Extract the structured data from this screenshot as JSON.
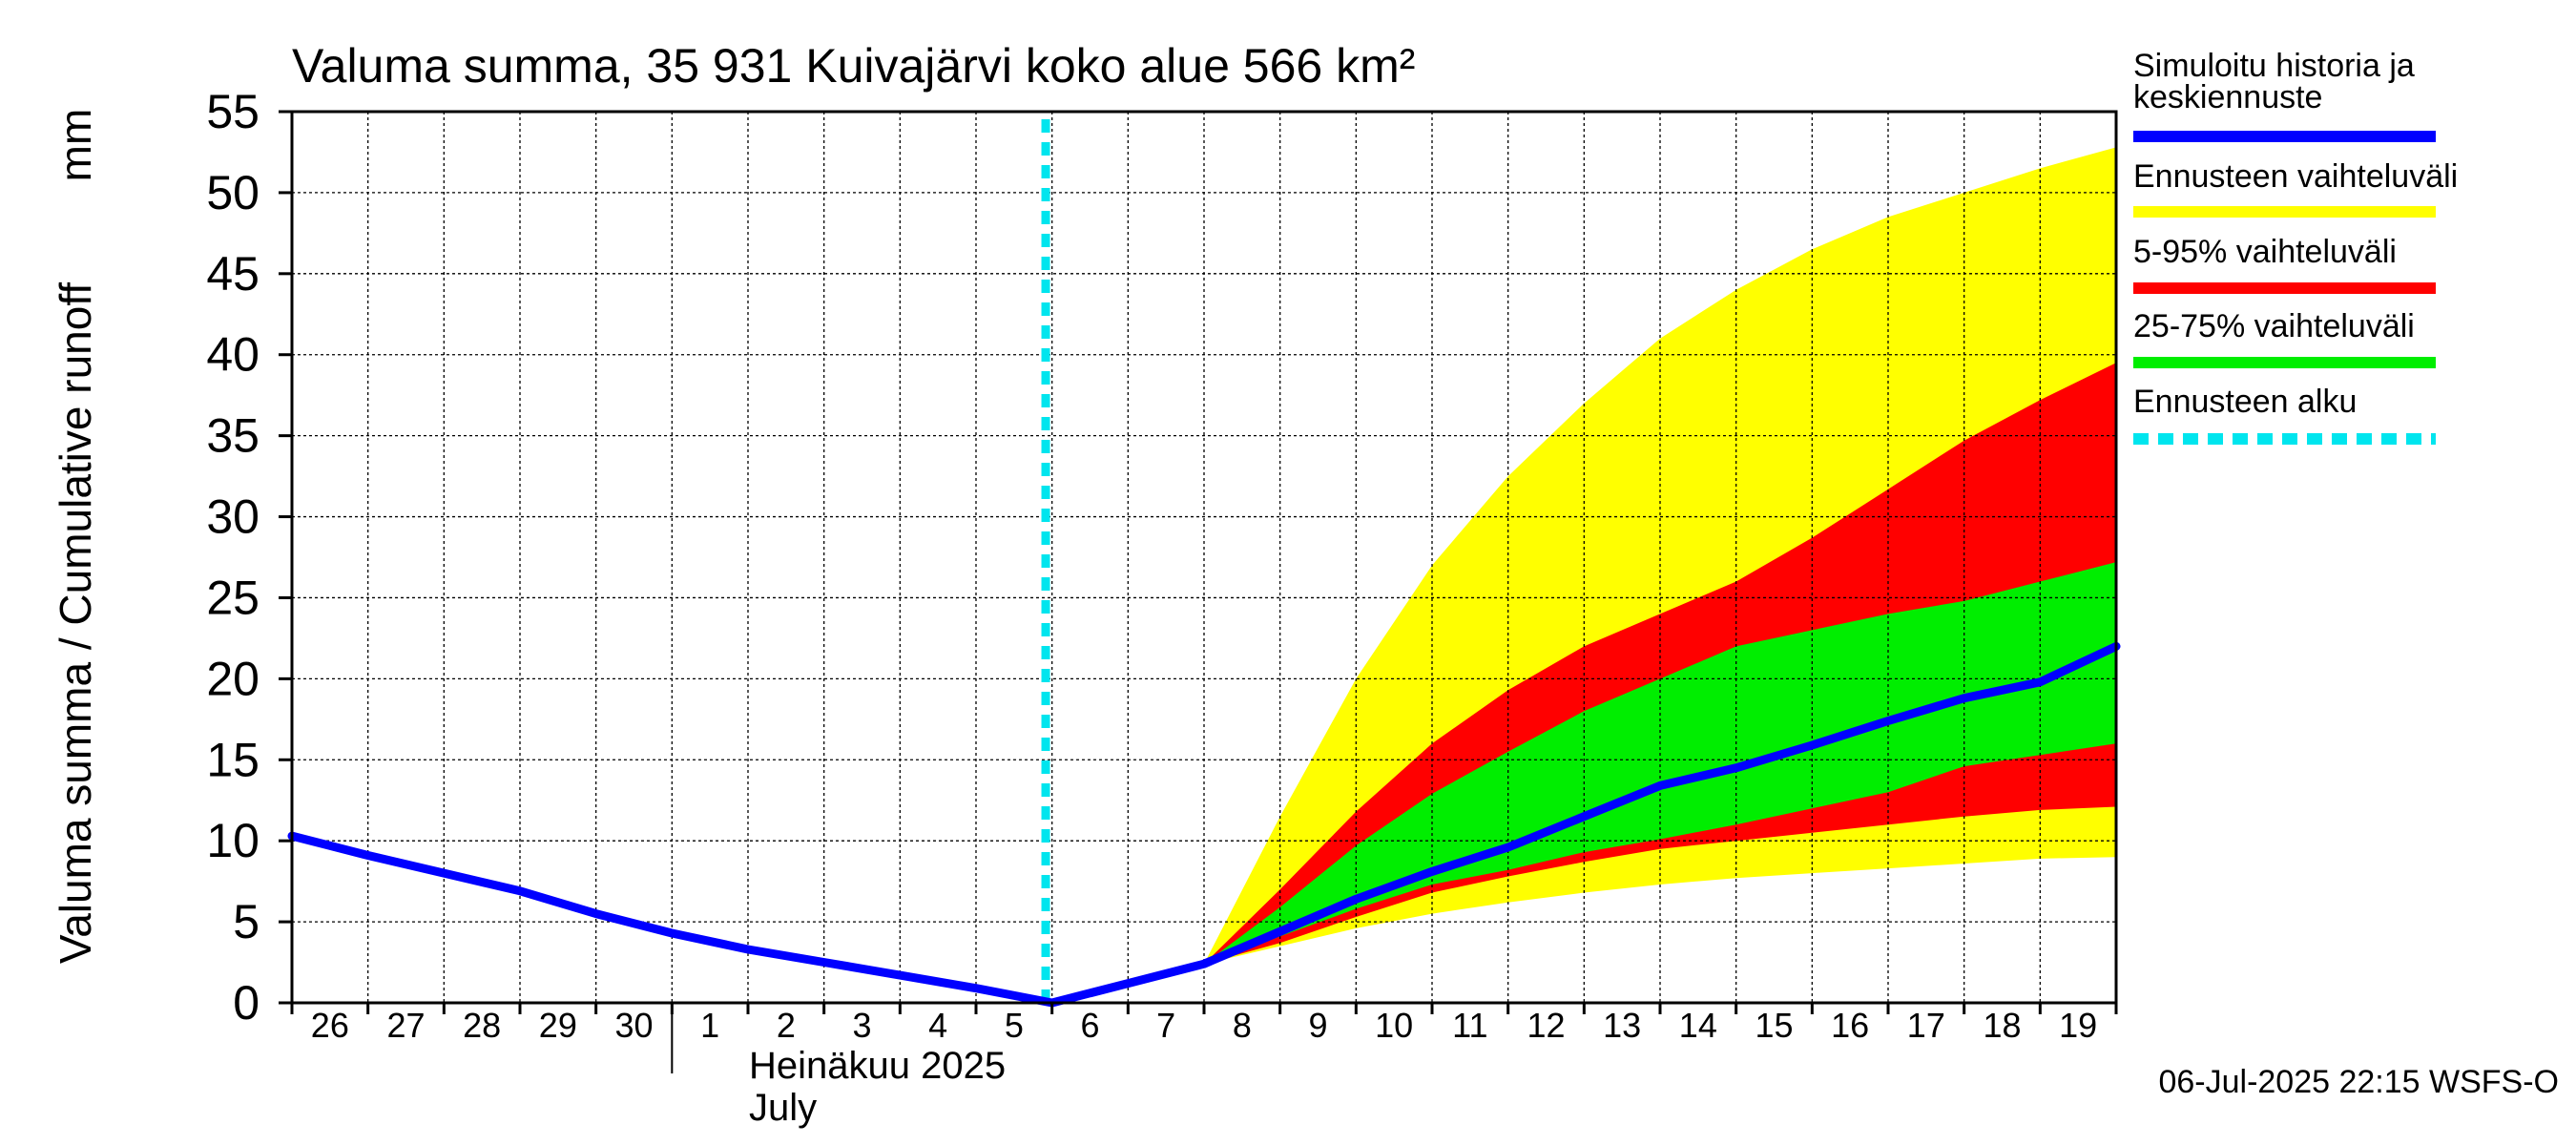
{
  "chart_data": {
    "type": "area",
    "title": "Valuma summa, 35 931 Kuivajärvi koko alue 566 km²",
    "ylabel": "Valuma summa / Cumulative runoff",
    "yunit": "mm",
    "ylim": [
      0,
      55
    ],
    "yticks": [
      0,
      5,
      10,
      15,
      20,
      25,
      30,
      35,
      40,
      45,
      50,
      55
    ],
    "grid": true,
    "legend_position": "right",
    "month_label_fi": "Heinäkuu  2025",
    "month_label_en": "July",
    "footer": "06-Jul-2025 22:15 WSFS-O",
    "x_tick_labels": [
      "26",
      "27",
      "28",
      "29",
      "30",
      "1",
      "2",
      "3",
      "4",
      "5",
      "6",
      "7",
      "8",
      "9",
      "10",
      "11",
      "12",
      "13",
      "14",
      "15",
      "16",
      "17",
      "18",
      "19"
    ],
    "x_range": [
      "2025-06-26",
      "2025-07-20"
    ],
    "forecast_start": "2025-07-05T22:00",
    "colors": {
      "history": "#0000ff",
      "full_range": "#ffff00",
      "p5_95": "#ff0000",
      "p25_75": "#00ee00",
      "forecast_start": "#00e5ee",
      "grid": "#000000"
    },
    "series": [
      {
        "name": "Simuloitu historia ja keskiennuste",
        "x": [
          "2025-06-26",
          "2025-06-27",
          "2025-06-28",
          "2025-06-29",
          "2025-06-30",
          "2025-07-01",
          "2025-07-02",
          "2025-07-03",
          "2025-07-04",
          "2025-07-05",
          "2025-07-06",
          "2025-07-07",
          "2025-07-08",
          "2025-07-09",
          "2025-07-10",
          "2025-07-11",
          "2025-07-12",
          "2025-07-13",
          "2025-07-14",
          "2025-07-15",
          "2025-07-16",
          "2025-07-17",
          "2025-07-18",
          "2025-07-19",
          "2025-07-20"
        ],
        "values": [
          10.3,
          9.1,
          8.0,
          6.9,
          5.5,
          4.3,
          3.3,
          2.5,
          1.7,
          0.9,
          0.0,
          1.2,
          2.4,
          4.4,
          6.4,
          8.1,
          9.6,
          11.5,
          13.4,
          14.5,
          15.9,
          17.4,
          18.8,
          19.8,
          22.0
        ]
      },
      {
        "name": "Ennusteen vaihteluväli",
        "x": [
          "2025-07-08",
          "2025-07-09",
          "2025-07-10",
          "2025-07-11",
          "2025-07-12",
          "2025-07-13",
          "2025-07-14",
          "2025-07-15",
          "2025-07-16",
          "2025-07-17",
          "2025-07-18",
          "2025-07-19",
          "2025-07-20"
        ],
        "upper": [
          2.4,
          11.5,
          20.0,
          27.0,
          32.5,
          37.0,
          41.0,
          44.0,
          46.5,
          48.5,
          50.0,
          51.5,
          52.8
        ],
        "lower": [
          2.4,
          3.5,
          4.6,
          5.5,
          6.2,
          6.8,
          7.3,
          7.7,
          8.0,
          8.3,
          8.6,
          8.9,
          9.0
        ]
      },
      {
        "name": "5-95% vaihteluväli",
        "x": [
          "2025-07-08",
          "2025-07-09",
          "2025-07-10",
          "2025-07-11",
          "2025-07-12",
          "2025-07-13",
          "2025-07-14",
          "2025-07-15",
          "2025-07-16",
          "2025-07-17",
          "2025-07-18",
          "2025-07-19",
          "2025-07-20"
        ],
        "upper": [
          2.4,
          7.0,
          11.8,
          16.0,
          19.3,
          22.0,
          24.0,
          26.0,
          28.7,
          31.7,
          34.7,
          37.2,
          39.5
        ],
        "lower": [
          2.4,
          3.7,
          5.3,
          6.8,
          7.8,
          8.7,
          9.5,
          10.0,
          10.5,
          11.0,
          11.5,
          11.9,
          12.1
        ]
      },
      {
        "name": "25-75% vaihteluväli",
        "x": [
          "2025-07-08",
          "2025-07-09",
          "2025-07-10",
          "2025-07-11",
          "2025-07-12",
          "2025-07-13",
          "2025-07-14",
          "2025-07-15",
          "2025-07-16",
          "2025-07-17",
          "2025-07-18",
          "2025-07-19",
          "2025-07-20"
        ],
        "upper": [
          2.4,
          5.9,
          9.7,
          12.9,
          15.5,
          18.0,
          20.0,
          22.0,
          23.0,
          24.0,
          24.8,
          26.0,
          27.2
        ],
        "lower": [
          2.4,
          4.1,
          5.8,
          7.3,
          8.2,
          9.3,
          10.1,
          11.0,
          12.0,
          13.0,
          14.6,
          15.3,
          16.0
        ]
      },
      {
        "name": "Ennusteen alku",
        "x": [
          "2025-07-05T22:00",
          "2025-07-05T22:00"
        ],
        "values": [
          0,
          55
        ]
      }
    ],
    "legend": [
      {
        "label": "Simuloitu historia ja keskiennuste",
        "color": "#0000ff",
        "style": "solid"
      },
      {
        "label": "Ennusteen vaihteluväli",
        "color": "#ffff00",
        "style": "solid"
      },
      {
        "label": "5-95% vaihteluväli",
        "color": "#ff0000",
        "style": "solid"
      },
      {
        "label": "25-75% vaihteluväli",
        "color": "#00ee00",
        "style": "solid"
      },
      {
        "label": "Ennusteen alku",
        "color": "#00e5ee",
        "style": "dashed"
      }
    ]
  }
}
